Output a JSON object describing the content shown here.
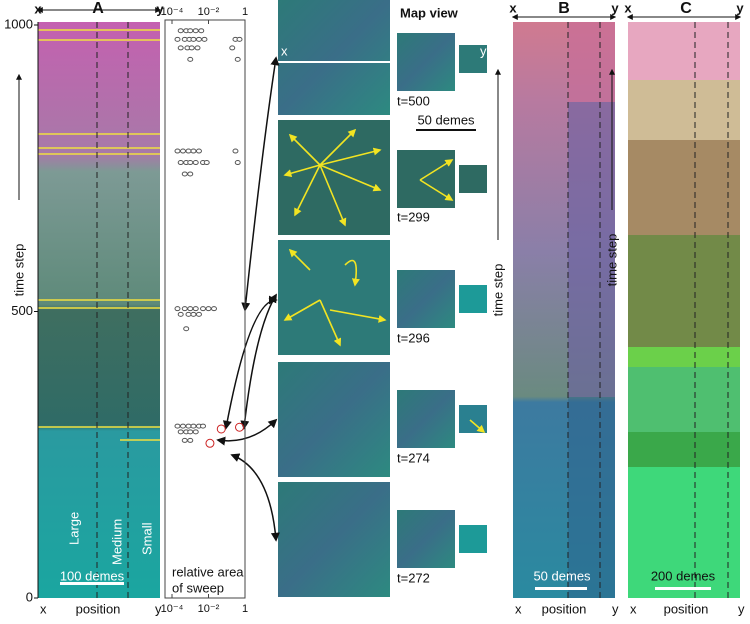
{
  "chart_data": {
    "type": "scatter",
    "log_x": true,
    "xlabel": [
      "relative area",
      "of sweep"
    ],
    "ylabel": "time step",
    "xlim": [
      0.0001,
      1
    ],
    "xticks": [
      {
        "value": 0.0001,
        "label": "10⁻⁴"
      },
      {
        "value": 0.01,
        "label": "10⁻²"
      },
      1
    ],
    "ylim": [
      0,
      1000
    ],
    "yticks": [
      0,
      500,
      1000
    ],
    "series": [
      {
        "color": "#555555",
        "x": [
          0.0003,
          0.0006,
          0.001,
          0.002,
          0.004,
          0.0002,
          0.0005,
          0.0009,
          0.0015,
          0.003,
          0.006,
          0.3,
          0.5,
          0.0003,
          0.0007,
          0.0012,
          0.0025,
          0.2,
          0.001,
          0.4,
          0.0002,
          0.0004,
          0.0008,
          0.0015,
          0.003,
          0.3,
          0.0003,
          0.0006,
          0.001,
          0.002,
          0.005,
          0.008,
          0.4,
          0.0005,
          0.001,
          0.0002,
          0.0005,
          0.001,
          0.002,
          0.005,
          0.01,
          0.02,
          0.0003,
          0.0008,
          0.0015,
          0.003,
          0.0006,
          0.0002,
          0.0004,
          0.0008,
          0.0015,
          0.003,
          0.005,
          0.0003,
          0.0006,
          0.001,
          0.002,
          0.0005,
          0.001
        ],
        "y": [
          990,
          990,
          990,
          990,
          990,
          975,
          975,
          975,
          975,
          975,
          975,
          975,
          975,
          960,
          960,
          960,
          960,
          960,
          940,
          940,
          780,
          780,
          780,
          780,
          780,
          780,
          760,
          760,
          760,
          760,
          760,
          760,
          760,
          740,
          740,
          505,
          505,
          505,
          505,
          505,
          505,
          505,
          495,
          495,
          495,
          495,
          470,
          300,
          300,
          300,
          300,
          300,
          300,
          290,
          290,
          290,
          290,
          275,
          275
        ]
      },
      {
        "color": "#cc2222",
        "x": [
          0.05,
          0.5,
          0.012
        ],
        "y": [
          295,
          298,
          270
        ]
      }
    ]
  },
  "figure": {
    "panel_a": {
      "letter": "A",
      "x": "x",
      "y": "y",
      "xlabel": "position",
      "scale_bar": "100 demes",
      "regions": [
        "Large",
        "Medium",
        "Small"
      ]
    },
    "panel_b": {
      "letter": "B",
      "x": "x",
      "y": "y",
      "xlabel": "position",
      "ylabel": "time step",
      "scale_bar": "50 demes"
    },
    "panel_c": {
      "letter": "C",
      "x": "x",
      "y": "y",
      "xlabel": "position",
      "ylabel": "time step",
      "scale_bar": "200 demes"
    },
    "map_view": {
      "title": "Map view",
      "x": "x",
      "y": "y",
      "scale_bar": "50 demes",
      "times": [
        "t=500",
        "t=299",
        "t=296",
        "t=274",
        "t=272"
      ]
    }
  }
}
